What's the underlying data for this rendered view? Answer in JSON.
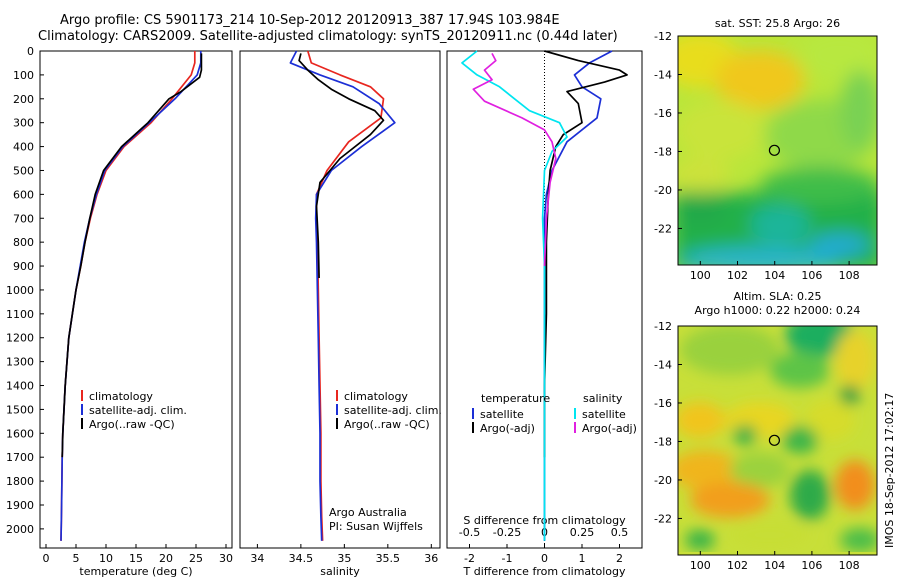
{
  "header": {
    "line1": "Argo profile: CS 5901173_214 10-Sep-2012 20120913_387 17.94S 103.984E",
    "line2": "Climatology: CARS2009. Satellite-adjusted climatology: synTS_20120911.nc (0.44d later)"
  },
  "side_stamp": "IMOS 18-Sep-2012 17:02:17",
  "colors": {
    "climatology": "#e8261f",
    "satellite": "#1c2fd6",
    "argo": "#000000",
    "sat_temp_diff": "#00e5f0",
    "argo_sal_diff": "#e020e0"
  },
  "chart_data": [
    {
      "type": "line",
      "name": "temperature-profile",
      "xlabel": "temperature (deg C)",
      "ylabel": "",
      "xlim": [
        -1,
        31
      ],
      "ylim": [
        2080,
        0
      ],
      "xticks": [
        "0",
        "5",
        "10",
        "15",
        "20",
        "25",
        "30"
      ],
      "yticks": [
        "0",
        "100",
        "200",
        "300",
        "400",
        "500",
        "600",
        "700",
        "800",
        "900",
        "1000",
        "1100",
        "1200",
        "1300",
        "1400",
        "1500",
        "1600",
        "1700",
        "1800",
        "1900",
        "2000"
      ],
      "legend": [
        "climatology",
        "satellite-adj. clim.",
        "Argo(..raw -QC)"
      ],
      "series": [
        {
          "key": "climatology",
          "color": "#e8261f",
          "x": [
            24.8,
            24.8,
            24.2,
            21.0,
            17.5,
            13.0,
            10.0,
            8.5,
            7.4,
            6.5,
            5.8,
            5.0,
            4.4,
            3.8,
            3.5,
            3.2,
            3.0,
            2.8,
            2.7,
            2.6,
            2.5
          ],
          "y": [
            0,
            50,
            100,
            200,
            300,
            400,
            500,
            600,
            700,
            800,
            900,
            1000,
            1100,
            1200,
            1300,
            1400,
            1500,
            1600,
            1700,
            1900,
            2050
          ]
        },
        {
          "key": "satellite",
          "color": "#1c2fd6",
          "x": [
            25.8,
            25.8,
            25.2,
            21.5,
            17.2,
            12.8,
            9.8,
            8.4,
            7.3,
            6.4,
            5.7,
            5.0,
            4.4,
            3.8,
            3.5,
            3.2,
            3.0,
            2.8,
            2.7,
            2.6,
            2.5
          ],
          "y": [
            0,
            50,
            100,
            200,
            300,
            400,
            500,
            600,
            700,
            800,
            900,
            1000,
            1100,
            1200,
            1300,
            1400,
            1500,
            1600,
            1700,
            1900,
            2050
          ]
        },
        {
          "key": "argo",
          "color": "#000000",
          "x": [
            25.9,
            25.9,
            25.9,
            25.6,
            22.5,
            20.5,
            17.0,
            12.6,
            9.6,
            8.2,
            7.3,
            6.5,
            5.8,
            5.0,
            4.4,
            3.8,
            3.5,
            3.2,
            3.0,
            2.8,
            2.7
          ],
          "y": [
            10,
            50,
            80,
            110,
            170,
            200,
            300,
            400,
            500,
            600,
            700,
            800,
            900,
            1000,
            1100,
            1200,
            1300,
            1400,
            1500,
            1600,
            1700
          ]
        }
      ]
    },
    {
      "type": "line",
      "name": "salinity-profile",
      "xlabel": "salinity",
      "ylabel": "",
      "xlim": [
        33.8,
        36.1
      ],
      "ylim": [
        2080,
        0
      ],
      "xticks": [
        "34",
        "34.5",
        "35",
        "35.5",
        "36"
      ],
      "legend": [
        "climatology",
        "satellite-adj. clim.",
        "Argo(..raw -QC)"
      ],
      "annotation": [
        "Argo Australia",
        "PI: Susan Wijffels"
      ],
      "series": [
        {
          "key": "climatology",
          "color": "#e8261f",
          "x": [
            34.58,
            34.62,
            34.95,
            35.3,
            35.45,
            35.42,
            35.05,
            34.8,
            34.68,
            34.68,
            34.69,
            34.7,
            34.71,
            34.72,
            34.73,
            34.73,
            34.74,
            34.75
          ],
          "y": [
            0,
            50,
            100,
            150,
            200,
            280,
            380,
            500,
            600,
            700,
            800,
            1000,
            1200,
            1400,
            1600,
            1800,
            1950,
            2050
          ]
        },
        {
          "key": "satellite",
          "color": "#1c2fd6",
          "x": [
            34.45,
            34.38,
            34.72,
            35.1,
            35.4,
            35.58,
            35.2,
            34.85,
            34.68,
            34.67,
            34.68,
            34.69,
            34.7,
            34.71,
            34.72,
            34.72,
            34.73,
            34.74
          ],
          "y": [
            0,
            50,
            100,
            150,
            220,
            300,
            400,
            500,
            600,
            700,
            800,
            1000,
            1200,
            1400,
            1600,
            1800,
            1950,
            2050
          ]
        },
        {
          "key": "argo",
          "color": "#000000",
          "x": [
            34.5,
            34.48,
            34.58,
            34.7,
            34.85,
            35.05,
            35.35,
            35.45,
            35.3,
            34.95,
            34.72,
            34.68,
            34.7,
            34.71
          ],
          "y": [
            10,
            40,
            80,
            120,
            160,
            200,
            250,
            290,
            350,
            450,
            550,
            650,
            800,
            950
          ]
        }
      ]
    },
    {
      "type": "line",
      "name": "difference-profile",
      "xlabel": "T difference from climatology",
      "top_xlabel": "S difference from climatology",
      "xlim": [
        -2.6,
        2.6
      ],
      "ylim": [
        2080,
        0
      ],
      "xticks": [
        "-2",
        "-1",
        "0",
        "1",
        "2"
      ],
      "top_xticks": [
        "-0.5",
        "-0.25",
        "0",
        "0.25",
        "0.5"
      ],
      "legend_titles": [
        "temperature",
        "salinity"
      ],
      "legend": [
        "satellite",
        "Argo(-adj)",
        "satellite",
        "Argo(-adj)"
      ],
      "series": [
        {
          "key": "t_sat",
          "color": "#1c2fd6",
          "x": [
            1.8,
            1.2,
            0.8,
            1.0,
            1.5,
            1.4,
            0.6,
            0.2,
            0.05,
            0.0,
            0.0,
            0.0,
            0.0,
            0.0,
            0.0
          ],
          "y": [
            0,
            50,
            100,
            150,
            200,
            280,
            380,
            500,
            600,
            700,
            900,
            1100,
            1400,
            1700,
            2050
          ]
        },
        {
          "key": "t_argo",
          "color": "#000000",
          "x": [
            0.0,
            0.9,
            2.0,
            2.2,
            1.6,
            0.6,
            0.9,
            1.0,
            0.5,
            0.3,
            0.15,
            0.1,
            0.05,
            0.05,
            0.0,
            0.0
          ],
          "y": [
            0,
            40,
            80,
            100,
            130,
            170,
            220,
            300,
            350,
            400,
            500,
            600,
            800,
            1100,
            1400,
            1700
          ]
        },
        {
          "key": "s_sat",
          "color": "#00e5f0",
          "x": [
            -1.8,
            -2.2,
            -1.8,
            -1.2,
            -0.8,
            -0.4,
            0.4,
            0.6,
            0.2,
            0.0,
            -0.05,
            0.0,
            0.0,
            0.0,
            0.0
          ],
          "y": [
            0,
            50,
            100,
            150,
            200,
            250,
            300,
            360,
            420,
            500,
            700,
            900,
            1300,
            1700,
            2050
          ]
        },
        {
          "key": "s_argo",
          "color": "#e020e0",
          "x": [
            -1.4,
            -1.3,
            -1.6,
            -1.4,
            -1.9,
            -1.6,
            -0.6,
            0.0,
            0.2,
            0.3,
            0.15,
            0.05,
            0.0
          ],
          "y": [
            10,
            40,
            80,
            120,
            160,
            210,
            280,
            330,
            380,
            450,
            550,
            700,
            900
          ]
        }
      ]
    },
    {
      "type": "heatmap",
      "name": "sat-sst-map",
      "title": "sat. SST: 25.8 Argo: 26",
      "xlim": [
        98.8,
        109.5
      ],
      "ylim": [
        -23.9,
        -12.0
      ],
      "xticks": [
        "100",
        "102",
        "104",
        "106",
        "108"
      ],
      "yticks": [
        "-12",
        "-14",
        "-16",
        "-18",
        "-20",
        "-22"
      ],
      "marker": {
        "x": 103.984,
        "y": -17.94
      }
    },
    {
      "type": "heatmap",
      "name": "altim-sla-map",
      "title": [
        "Altim. SLA: 0.25",
        "Argo h1000: 0.22 h2000: 0.24"
      ],
      "xlim": [
        98.8,
        109.5
      ],
      "ylim": [
        -23.9,
        -12.0
      ],
      "xticks": [
        "100",
        "102",
        "104",
        "106",
        "108"
      ],
      "yticks": [
        "-12",
        "-14",
        "-16",
        "-18",
        "-20",
        "-22"
      ],
      "marker": {
        "x": 103.984,
        "y": -17.94
      }
    }
  ]
}
